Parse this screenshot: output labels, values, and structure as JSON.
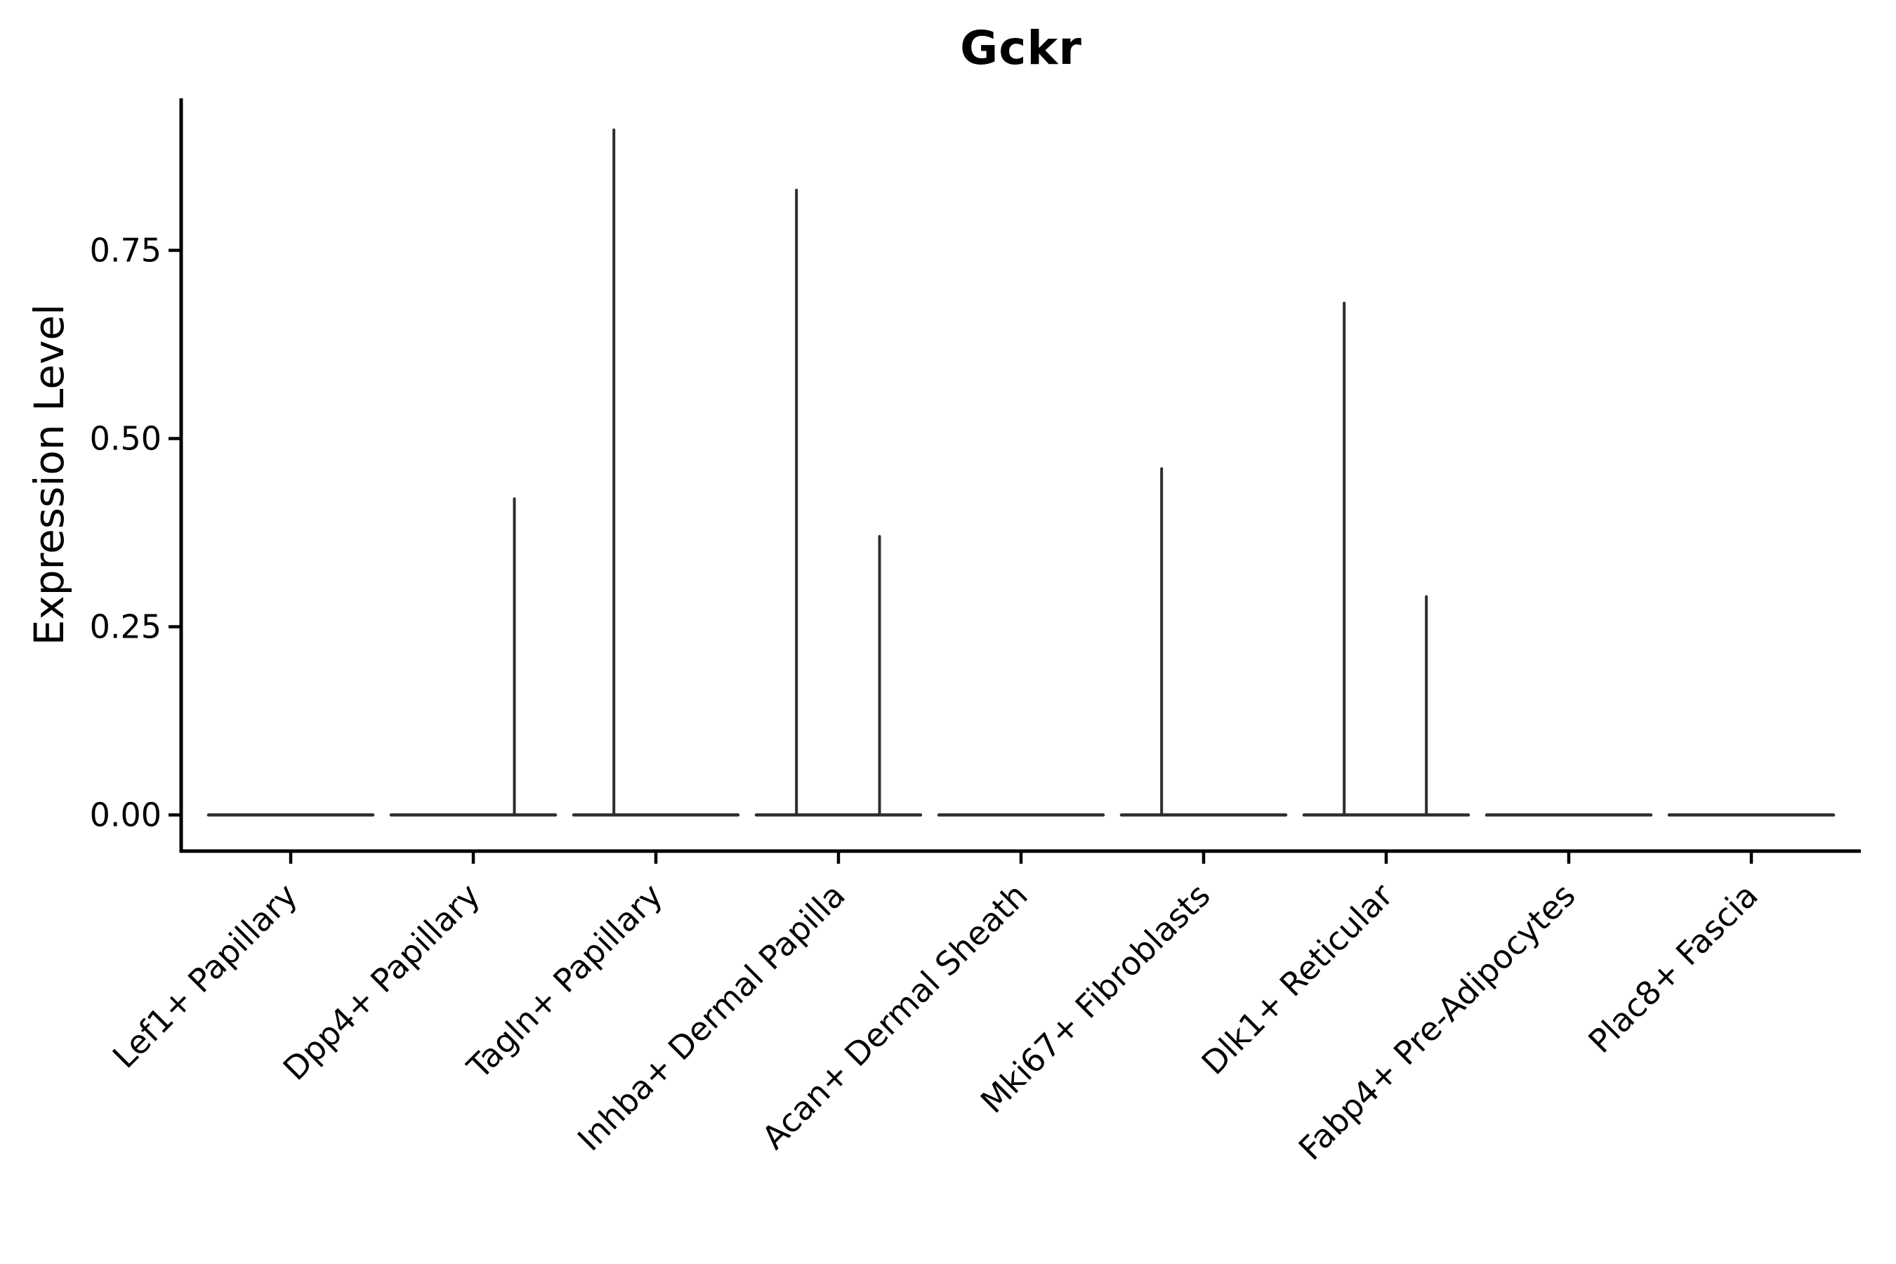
{
  "title": "Gckr",
  "ylabel": "Expression Level",
  "chart_data": {
    "type": "violin",
    "title": "Gckr",
    "xlabel": "",
    "ylabel": "Expression Level",
    "legend": "none",
    "grid": false,
    "ylim": [
      -0.048,
      0.952
    ],
    "y_ticks": [
      0.0,
      0.25,
      0.5,
      0.75
    ],
    "y_tick_labels": [
      "0.00",
      "0.25",
      "0.50",
      "0.75"
    ],
    "violin_width": 0.9,
    "categories": [
      "Lef1+ Papillary",
      "Dpp4+ Papillary",
      "Tagln+ Papillary",
      "Inhba+ Dermal Papilla",
      "Acan+ Dermal Sheath",
      "Mki67+ Fibroblasts",
      "Dlk1+ Reticular",
      "Fabp4+ Pre-Adipocytes",
      "Plac8+ Fascia"
    ],
    "series": [
      {
        "category": "Lef1+ Papillary",
        "baseline": 0,
        "max": 0.0,
        "spikes": []
      },
      {
        "category": "Dpp4+ Papillary",
        "baseline": 0,
        "max": 0.42,
        "spikes": [
          {
            "offset": 0.225,
            "value": 0.42
          }
        ]
      },
      {
        "category": "Tagln+ Papillary",
        "baseline": 0,
        "max": 0.91,
        "spikes": [
          {
            "offset": -0.23,
            "value": 0.91
          }
        ]
      },
      {
        "category": "Inhba+ Dermal Papilla",
        "baseline": 0,
        "max": 0.83,
        "spikes": [
          {
            "offset": -0.23,
            "value": 0.83
          },
          {
            "offset": 0.225,
            "value": 0.37
          }
        ]
      },
      {
        "category": "Acan+ Dermal Sheath",
        "baseline": 0,
        "max": 0.0,
        "spikes": []
      },
      {
        "category": "Mki67+ Fibroblasts",
        "baseline": 0,
        "max": 0.46,
        "spikes": [
          {
            "offset": -0.23,
            "value": 0.46
          }
        ]
      },
      {
        "category": "Dlk1+ Reticular",
        "baseline": 0,
        "max": 0.68,
        "spikes": [
          {
            "offset": -0.23,
            "value": 0.68
          },
          {
            "offset": 0.22,
            "value": 0.29
          }
        ]
      },
      {
        "category": "Fabp4+ Pre-Adipocytes",
        "baseline": 0,
        "max": 0.0,
        "spikes": []
      },
      {
        "category": "Plac8+ Fascia",
        "baseline": 0,
        "max": 0.0,
        "spikes": []
      }
    ]
  },
  "style": {
    "axis_color": "#000000",
    "violin_color": "#2d2d2d",
    "text_color": "#000000",
    "background_color": "#ffffff"
  }
}
